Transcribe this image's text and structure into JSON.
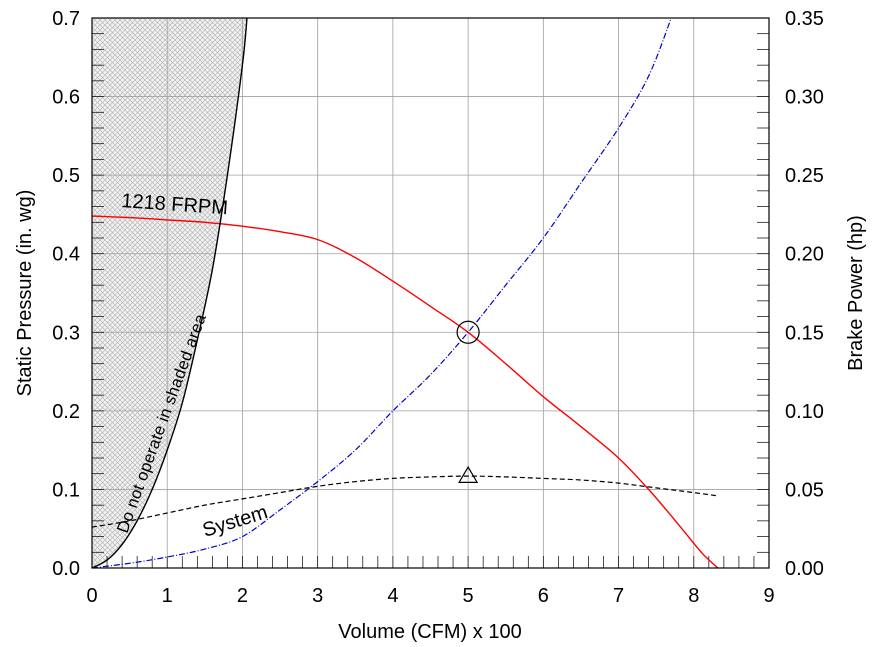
{
  "chart_data": {
    "type": "line",
    "xlabel": "Volume (CFM) x 100",
    "ylabel": "Static Pressure (in. wg)",
    "y2label": "Brake Power (hp)",
    "xlim": [
      0,
      9
    ],
    "ylim": [
      0,
      0.7
    ],
    "y2lim": [
      0,
      0.35
    ],
    "grid": true,
    "xticks": [
      "0",
      "1",
      "2",
      "3",
      "4",
      "5",
      "6",
      "7",
      "8",
      "9"
    ],
    "yticks": [
      "0.0",
      "0.1",
      "0.2",
      "0.3",
      "0.4",
      "0.5",
      "0.6",
      "0.7"
    ],
    "y2ticks": [
      "0.00",
      "0.05",
      "0.10",
      "0.15",
      "0.20",
      "0.25",
      "0.30",
      "0.35"
    ],
    "series": [
      {
        "name": "1218 FRPM",
        "axis": "left",
        "color": "#ff0000",
        "style": "solid",
        "x": [
          0,
          0.5,
          1,
          1.5,
          2,
          2.5,
          3,
          3.5,
          4,
          4.5,
          5,
          5.5,
          6,
          6.5,
          7,
          7.4,
          7.8,
          8.1,
          8.32
        ],
        "y": [
          0.448,
          0.446,
          0.443,
          0.44,
          0.435,
          0.428,
          0.418,
          0.395,
          0.365,
          0.333,
          0.3,
          0.26,
          0.218,
          0.18,
          0.14,
          0.1,
          0.055,
          0.02,
          0.0
        ]
      },
      {
        "name": "System",
        "axis": "left",
        "color": "#000000",
        "style": "dashed",
        "x": [
          0,
          0.5,
          1,
          1.5,
          2,
          2.5,
          3,
          3.5,
          4,
          4.5,
          5,
          5.5,
          6,
          6.5,
          7,
          7.5,
          8,
          8.3
        ],
        "y": [
          0.052,
          0.06,
          0.07,
          0.08,
          0.088,
          0.096,
          0.104,
          0.11,
          0.114,
          0.116,
          0.117,
          0.116,
          0.114,
          0.112,
          0.108,
          0.102,
          0.096,
          0.092
        ]
      },
      {
        "name": "Brake Power",
        "axis": "right",
        "color": "#0000cc",
        "style": "dashdot",
        "x": [
          0,
          0.5,
          1,
          1.5,
          2,
          2.5,
          3,
          3.5,
          4,
          4.5,
          5,
          5.5,
          6,
          6.5,
          7,
          7.4,
          7.7
        ],
        "y": [
          0,
          0.003,
          0.007,
          0.012,
          0.02,
          0.037,
          0.055,
          0.075,
          0.1,
          0.123,
          0.15,
          0.18,
          0.21,
          0.245,
          0.28,
          0.313,
          0.35
        ]
      },
      {
        "name": "Do not operate in shaded area",
        "axis": "left",
        "color": "#000000",
        "style": "solid",
        "x": [
          0,
          0.2,
          0.4,
          0.6,
          0.8,
          1.0,
          1.2,
          1.4,
          1.6,
          1.8,
          2.0,
          2.06
        ],
        "y": [
          0,
          0.01,
          0.03,
          0.06,
          0.1,
          0.15,
          0.21,
          0.29,
          0.38,
          0.5,
          0.64,
          0.7
        ]
      }
    ],
    "markers": [
      {
        "shape": "circle",
        "x": 5,
        "y": 0.3,
        "axis": "left"
      },
      {
        "shape": "triangle",
        "x": 5,
        "y": 0.117,
        "axis": "left"
      }
    ],
    "annotations": [
      {
        "id": "fan",
        "text": "1218  FRPM"
      },
      {
        "id": "system",
        "text": "System"
      },
      {
        "id": "warning",
        "text": "Do  not  operate  in  shaded    area"
      }
    ]
  }
}
